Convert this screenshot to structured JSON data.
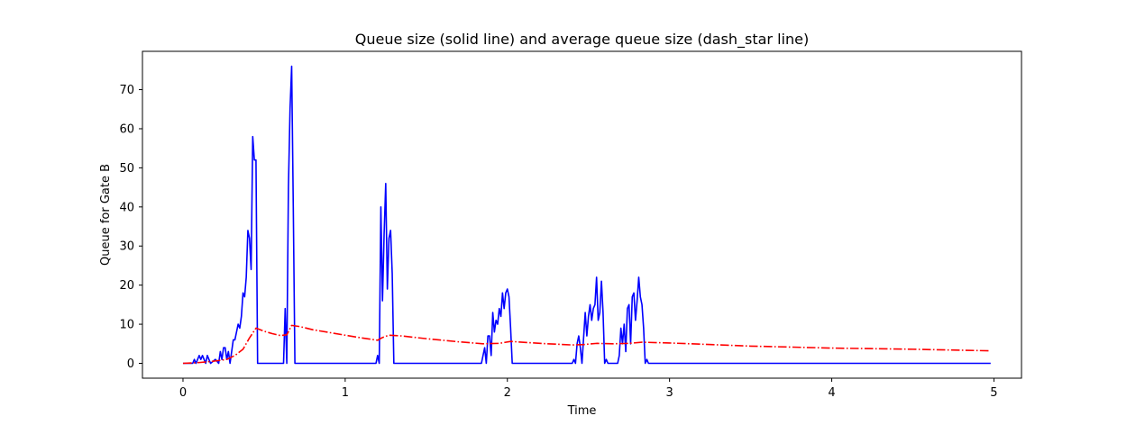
{
  "chart_data": {
    "type": "line",
    "title": "Queue size (solid line) and average queue size (dash_star line)",
    "xlabel": "Time",
    "ylabel": "Queue for Gate B",
    "xlim": [
      -0.25,
      5.17
    ],
    "ylim": [
      -3.8,
      79.8
    ],
    "xticks": [
      0,
      1,
      2,
      3,
      4,
      5
    ],
    "yticks": [
      0,
      10,
      20,
      30,
      40,
      50,
      60,
      70
    ],
    "grid": false,
    "legend": "none",
    "series": [
      {
        "style": "solid",
        "color": "#0000ff",
        "points": [
          [
            0.0,
            0
          ],
          [
            0.06,
            0
          ],
          [
            0.07,
            1
          ],
          [
            0.08,
            0
          ],
          [
            0.09,
            1
          ],
          [
            0.1,
            2
          ],
          [
            0.11,
            1
          ],
          [
            0.12,
            2
          ],
          [
            0.13,
            1
          ],
          [
            0.14,
            0
          ],
          [
            0.15,
            2
          ],
          [
            0.16,
            1
          ],
          [
            0.17,
            0
          ],
          [
            0.2,
            1
          ],
          [
            0.22,
            0
          ],
          [
            0.23,
            3
          ],
          [
            0.24,
            1
          ],
          [
            0.25,
            4
          ],
          [
            0.26,
            4
          ],
          [
            0.27,
            1
          ],
          [
            0.28,
            3
          ],
          [
            0.29,
            0
          ],
          [
            0.3,
            3
          ],
          [
            0.31,
            6
          ],
          [
            0.32,
            6
          ],
          [
            0.33,
            8
          ],
          [
            0.34,
            10
          ],
          [
            0.35,
            9
          ],
          [
            0.36,
            12
          ],
          [
            0.37,
            18
          ],
          [
            0.38,
            17
          ],
          [
            0.39,
            22
          ],
          [
            0.4,
            34
          ],
          [
            0.41,
            32
          ],
          [
            0.42,
            24
          ],
          [
            0.43,
            58
          ],
          [
            0.44,
            52
          ],
          [
            0.45,
            52
          ],
          [
            0.46,
            0
          ],
          [
            0.62,
            0
          ],
          [
            0.63,
            14
          ],
          [
            0.64,
            0
          ],
          [
            0.65,
            45
          ],
          [
            0.66,
            65
          ],
          [
            0.67,
            76
          ],
          [
            0.68,
            40
          ],
          [
            0.69,
            0
          ],
          [
            1.19,
            0
          ],
          [
            1.2,
            2
          ],
          [
            1.21,
            0
          ],
          [
            1.22,
            40
          ],
          [
            1.23,
            16
          ],
          [
            1.24,
            33
          ],
          [
            1.25,
            46
          ],
          [
            1.26,
            19
          ],
          [
            1.27,
            32
          ],
          [
            1.28,
            34
          ],
          [
            1.29,
            23
          ],
          [
            1.3,
            0
          ],
          [
            1.84,
            0
          ],
          [
            1.86,
            4
          ],
          [
            1.87,
            0
          ],
          [
            1.88,
            7
          ],
          [
            1.89,
            7
          ],
          [
            1.9,
            2
          ],
          [
            1.91,
            13
          ],
          [
            1.92,
            8
          ],
          [
            1.93,
            11
          ],
          [
            1.94,
            10
          ],
          [
            1.95,
            14
          ],
          [
            1.96,
            12
          ],
          [
            1.97,
            18
          ],
          [
            1.98,
            14
          ],
          [
            1.99,
            18
          ],
          [
            2.0,
            19
          ],
          [
            2.01,
            17
          ],
          [
            2.02,
            9
          ],
          [
            2.03,
            0
          ],
          [
            2.4,
            0
          ],
          [
            2.41,
            1
          ],
          [
            2.42,
            0
          ],
          [
            2.43,
            5
          ],
          [
            2.44,
            7
          ],
          [
            2.45,
            4
          ],
          [
            2.46,
            0
          ],
          [
            2.48,
            13
          ],
          [
            2.49,
            7
          ],
          [
            2.5,
            12
          ],
          [
            2.51,
            15
          ],
          [
            2.52,
            11
          ],
          [
            2.53,
            14
          ],
          [
            2.54,
            15
          ],
          [
            2.55,
            22
          ],
          [
            2.56,
            11
          ],
          [
            2.57,
            13
          ],
          [
            2.58,
            21
          ],
          [
            2.59,
            13
          ],
          [
            2.6,
            0
          ],
          [
            2.61,
            1
          ],
          [
            2.62,
            0
          ],
          [
            2.68,
            0
          ],
          [
            2.69,
            2
          ],
          [
            2.7,
            9
          ],
          [
            2.71,
            5
          ],
          [
            2.72,
            10
          ],
          [
            2.73,
            3
          ],
          [
            2.74,
            14
          ],
          [
            2.75,
            15
          ],
          [
            2.76,
            5
          ],
          [
            2.77,
            17
          ],
          [
            2.78,
            18
          ],
          [
            2.79,
            11
          ],
          [
            2.8,
            16
          ],
          [
            2.81,
            22
          ],
          [
            2.82,
            17
          ],
          [
            2.83,
            15
          ],
          [
            2.84,
            9
          ],
          [
            2.85,
            0
          ],
          [
            2.86,
            1
          ],
          [
            2.87,
            0
          ],
          [
            4.98,
            0
          ]
        ]
      },
      {
        "style": "dashdot",
        "color": "#ff0000",
        "points": [
          [
            0.0,
            0
          ],
          [
            0.1,
            0.2
          ],
          [
            0.2,
            0.6
          ],
          [
            0.27,
            1.0
          ],
          [
            0.32,
            2.0
          ],
          [
            0.37,
            3.6
          ],
          [
            0.41,
            6.5
          ],
          [
            0.45,
            9.0
          ],
          [
            0.5,
            8.2
          ],
          [
            0.55,
            7.6
          ],
          [
            0.6,
            7.1
          ],
          [
            0.64,
            7.3
          ],
          [
            0.67,
            9.7
          ],
          [
            0.72,
            9.4
          ],
          [
            0.8,
            8.6
          ],
          [
            0.9,
            7.9
          ],
          [
            1.0,
            7.2
          ],
          [
            1.1,
            6.5
          ],
          [
            1.2,
            5.9
          ],
          [
            1.23,
            6.6
          ],
          [
            1.27,
            7.2
          ],
          [
            1.35,
            7.0
          ],
          [
            1.5,
            6.3
          ],
          [
            1.7,
            5.5
          ],
          [
            1.85,
            5.0
          ],
          [
            1.95,
            5.1
          ],
          [
            2.02,
            5.6
          ],
          [
            2.2,
            5.1
          ],
          [
            2.4,
            4.7
          ],
          [
            2.47,
            4.8
          ],
          [
            2.55,
            5.1
          ],
          [
            2.65,
            5.0
          ],
          [
            2.75,
            5.1
          ],
          [
            2.83,
            5.4
          ],
          [
            3.0,
            5.2
          ],
          [
            3.5,
            4.4
          ],
          [
            4.0,
            3.9
          ],
          [
            4.5,
            3.6
          ],
          [
            4.98,
            3.2
          ]
        ]
      }
    ]
  }
}
